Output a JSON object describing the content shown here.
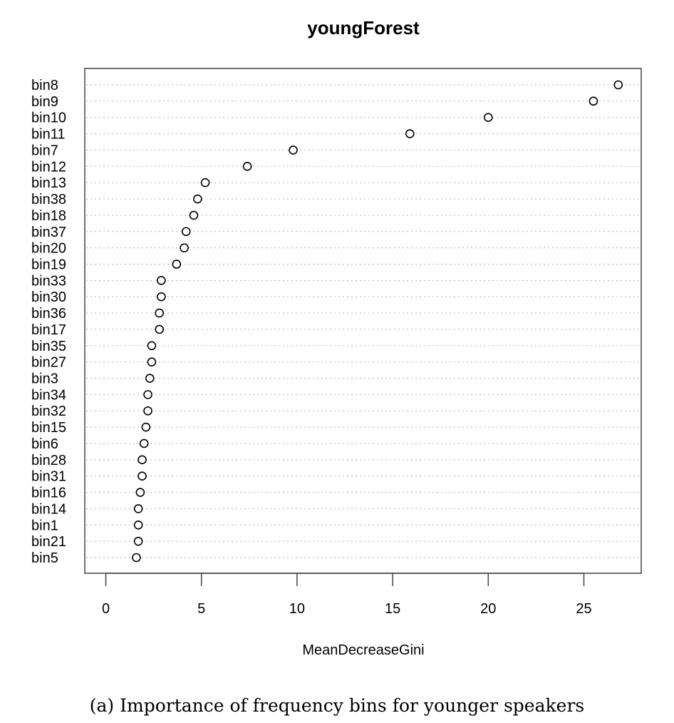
{
  "chart_data": {
    "type": "scatter",
    "title": "youngForest",
    "xlabel": "MeanDecreaseGini",
    "ylabel": "",
    "xlim": [
      -1.1,
      28.0
    ],
    "xticks": [
      0,
      5,
      10,
      15,
      20,
      25
    ],
    "grid": "dotted horizontal lines per category",
    "categories": [
      "bin8",
      "bin9",
      "bin10",
      "bin11",
      "bin7",
      "bin12",
      "bin13",
      "bin38",
      "bin18",
      "bin37",
      "bin20",
      "bin19",
      "bin33",
      "bin30",
      "bin36",
      "bin17",
      "bin35",
      "bin27",
      "bin3",
      "bin34",
      "bin32",
      "bin15",
      "bin6",
      "bin28",
      "bin31",
      "bin16",
      "bin14",
      "bin1",
      "bin21",
      "bin5"
    ],
    "values": [
      26.8,
      25.5,
      20.0,
      15.9,
      9.8,
      7.4,
      5.2,
      4.8,
      4.6,
      4.2,
      4.1,
      3.7,
      2.9,
      2.9,
      2.8,
      2.8,
      2.4,
      2.4,
      2.3,
      2.2,
      2.2,
      2.1,
      2.0,
      1.9,
      1.9,
      1.8,
      1.7,
      1.7,
      1.7,
      1.6
    ],
    "marker": "open circle"
  },
  "caption": "(a) Importance of frequency bins for younger speakers"
}
